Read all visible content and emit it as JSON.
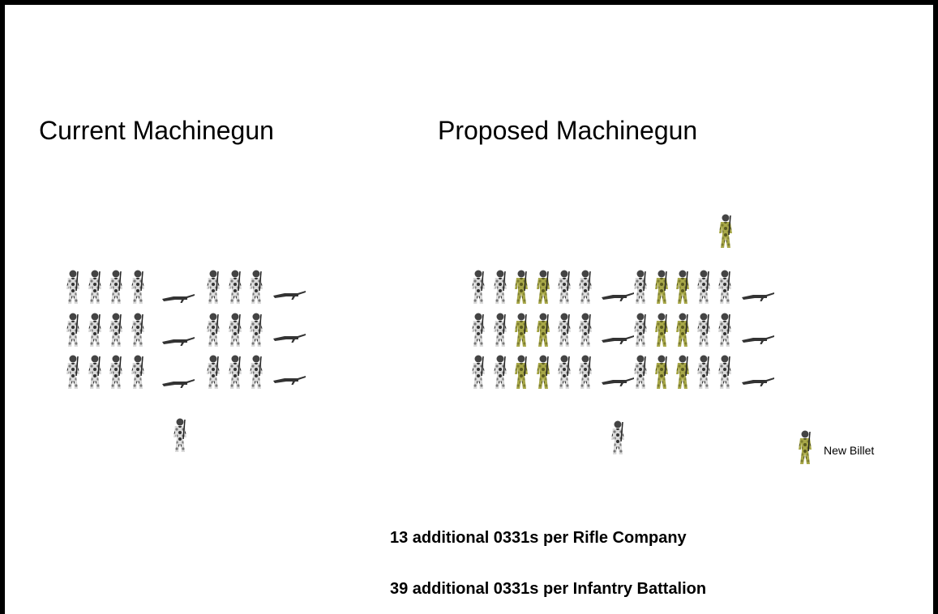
{
  "slide": {
    "current_title": "Current Machinegun",
    "proposed_title": "Proposed Machinegun",
    "legend_label": "New Billet",
    "notes": [
      "13 additional 0331s per Rifle Company",
      "39 additional 0331s per Infantry Battalion"
    ]
  }
}
